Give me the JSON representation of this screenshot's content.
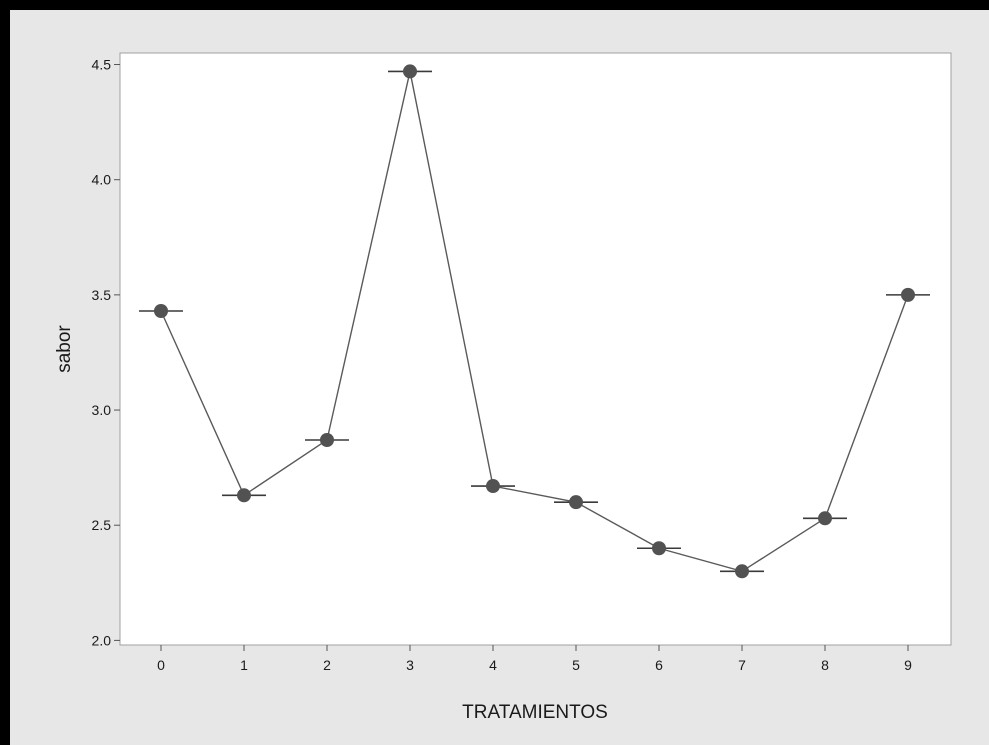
{
  "chart_data": {
    "type": "line",
    "xlabel": "TRATAMIENTOS",
    "ylabel": "sabor",
    "categories": [
      "0",
      "1",
      "2",
      "3",
      "4",
      "5",
      "6",
      "7",
      "8",
      "9"
    ],
    "series": [
      {
        "values": [
          3.43,
          2.63,
          2.87,
          4.47,
          2.67,
          2.6,
          2.4,
          2.3,
          2.53,
          3.5
        ]
      }
    ],
    "ylim": [
      1.98,
      4.55
    ],
    "yticks": [
      "2.0",
      "2.5",
      "3.0",
      "3.5",
      "4.0",
      "4.5"
    ],
    "grid": false,
    "marker": "circle-with-horizontal-bar",
    "colors": {
      "line": "#5a5a5a",
      "marker": "#525252",
      "bar": "#3a3a3a",
      "background": "#e7e7e7",
      "plot_area": "#ffffff",
      "frame": "#000000"
    }
  }
}
